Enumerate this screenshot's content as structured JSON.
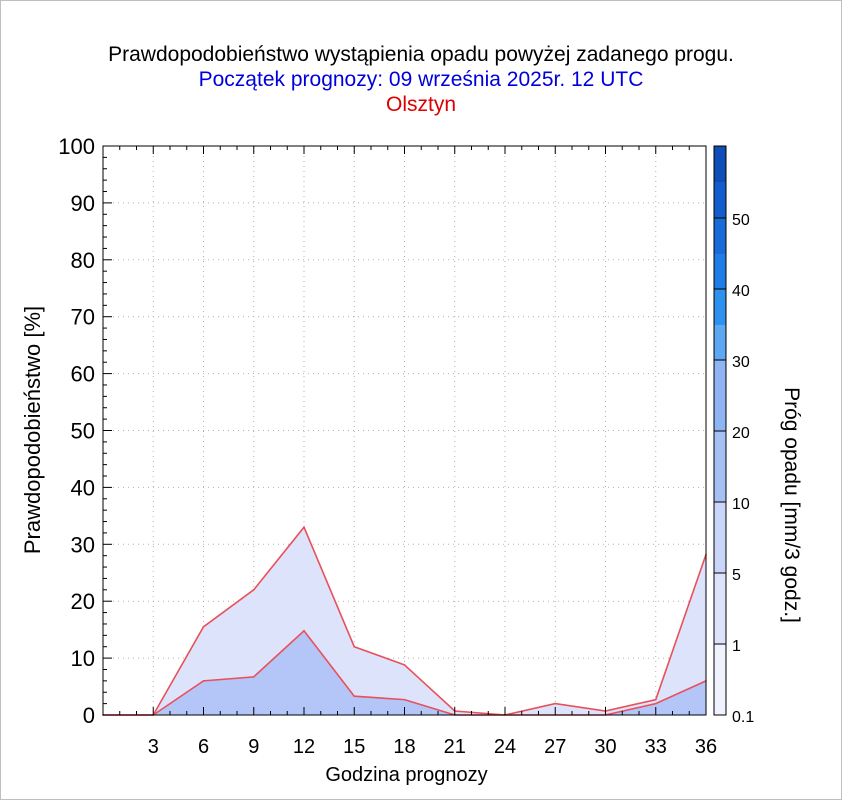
{
  "titles": {
    "main": "Prawdopodobieństwo wystąpienia opadu powyżej zadanego progu.",
    "forecast_start": "Początek prognozy: 09 września 2025r. 12 UTC",
    "location": "Olsztyn"
  },
  "colors": {
    "title": "#000000",
    "forecast_start": "#0000dd",
    "location": "#dd0000",
    "series_line": "#e8505a",
    "fill_0_1": "#dde3fb",
    "fill_1": "#b3c6f7",
    "grid": "#b0b0b0",
    "colorbar": [
      "#f0f2fd",
      "#dde3fb",
      "#c9d6f9",
      "#a6c0f5",
      "#8fb4f3",
      "#5ea7f2",
      "#2f91ee",
      "#1f7ee5",
      "#186cd9",
      "#125ccc",
      "#0f4db7",
      "#0a3fa3"
    ]
  },
  "chart_data": {
    "type": "area",
    "xlabel": "Godzina prognozy",
    "ylabel": "Prawdopodobieństwo [%]",
    "x": [
      0,
      3,
      6,
      9,
      12,
      15,
      18,
      21,
      24,
      27,
      30,
      33,
      36
    ],
    "xticks": [
      "3",
      "6",
      "9",
      "12",
      "15",
      "18",
      "21",
      "24",
      "27",
      "30",
      "33",
      "36"
    ],
    "yticks": [
      "0",
      "10",
      "20",
      "30",
      "40",
      "50",
      "60",
      "70",
      "80",
      "90",
      "100"
    ],
    "xlim": [
      0,
      36
    ],
    "ylim": [
      0,
      100
    ],
    "grid": true,
    "series": [
      {
        "threshold": 0.1,
        "values": [
          0,
          0,
          15.5,
          22,
          33,
          12,
          8.8,
          0.7,
          0,
          2,
          0.7,
          2.7,
          28.2
        ]
      },
      {
        "threshold": 1,
        "values": [
          0,
          0,
          6,
          6.7,
          14.8,
          3.3,
          2.7,
          0,
          0,
          0,
          0,
          2,
          6
        ]
      }
    ],
    "colorbar": {
      "label": "Próg opadu [mm/3 godz.]",
      "tick_labels": [
        "0.1",
        "1",
        "5",
        "10",
        "20",
        "30",
        "40",
        "50"
      ]
    }
  }
}
